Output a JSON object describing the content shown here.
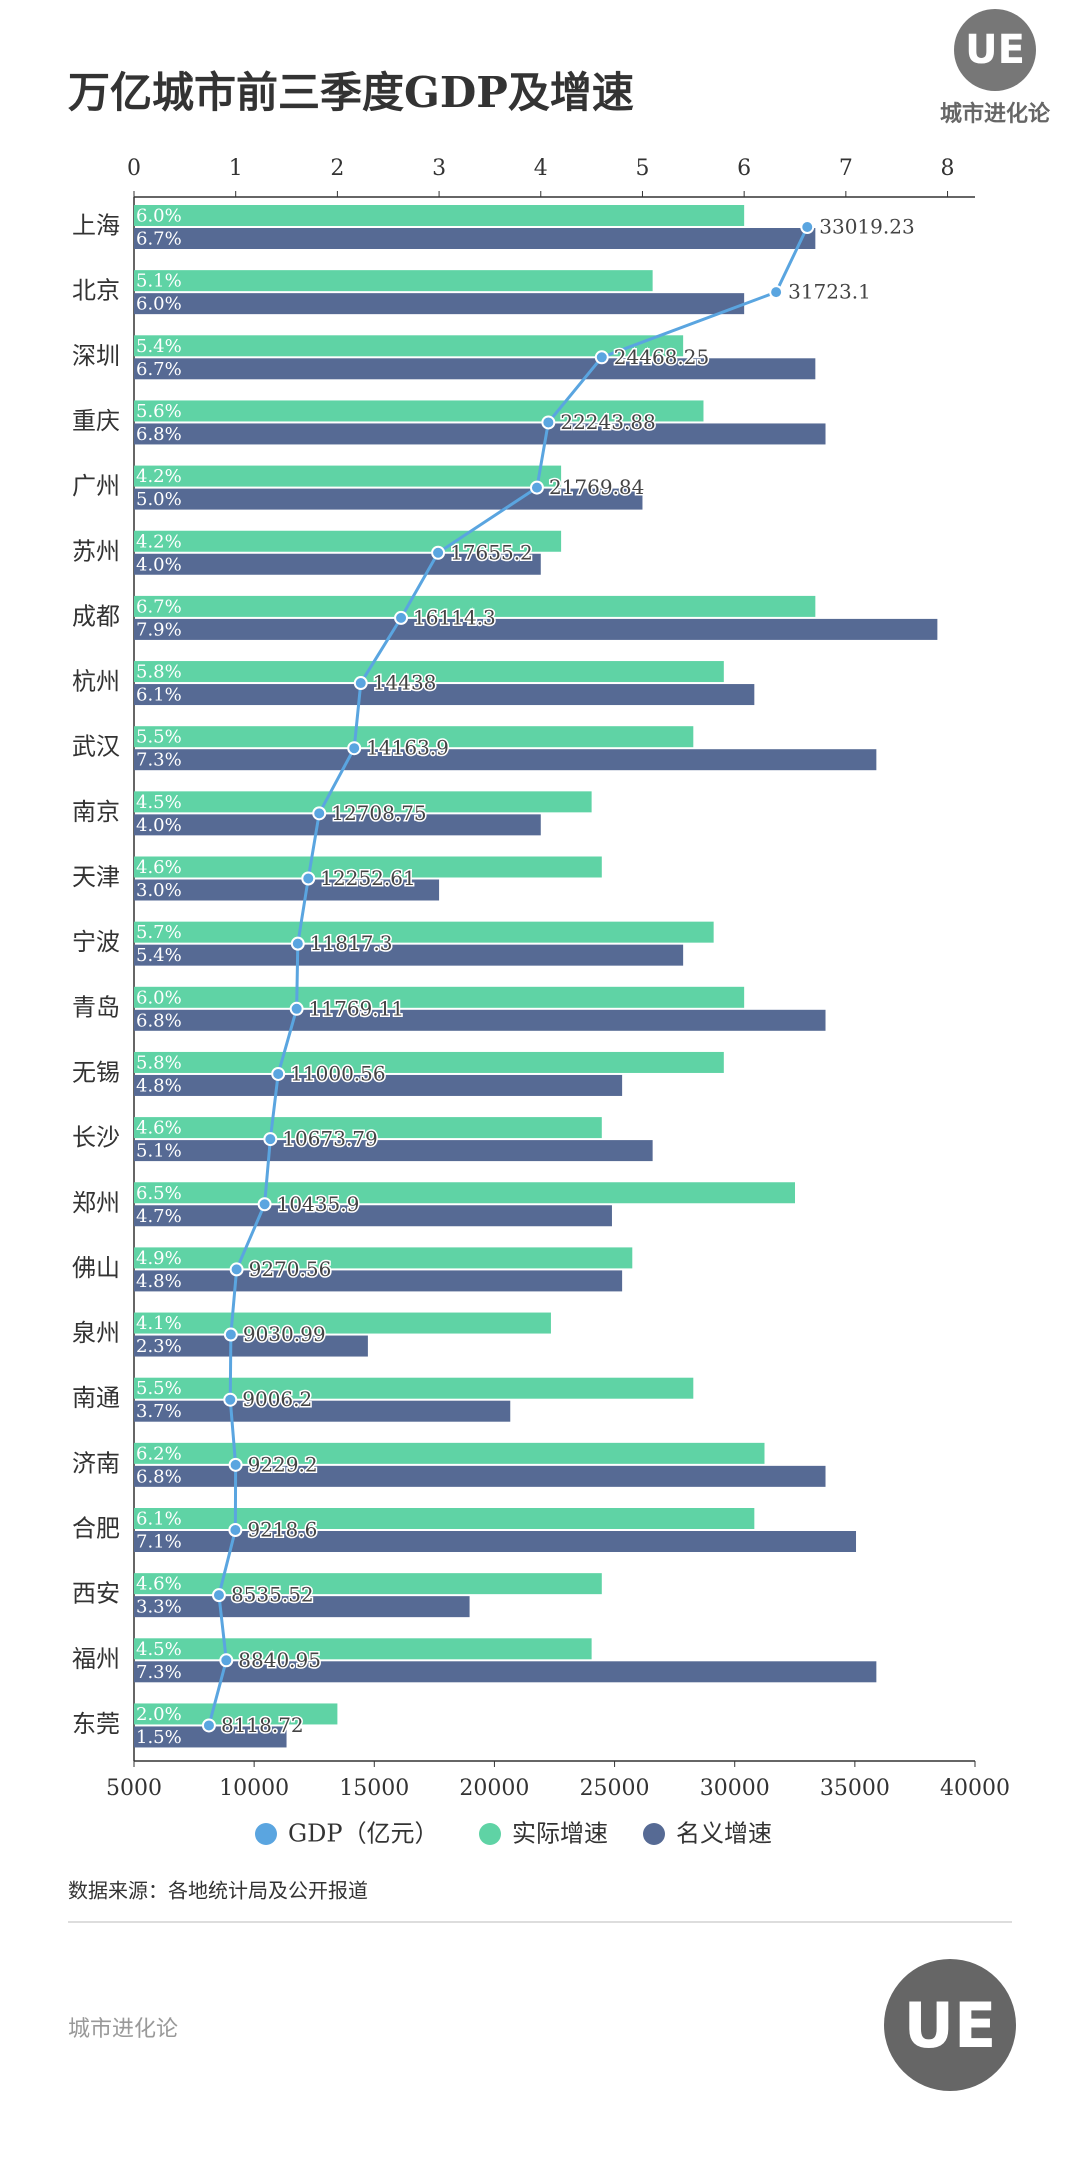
{
  "chart_data": {
    "type": "bar",
    "orientation": "horizontal",
    "title": "万亿城市前三季度GDP及增速",
    "brand": "城市进化论",
    "logo": "UE",
    "source": "数据来源：各地统计局及公开报道",
    "footer": "城市进化论",
    "categories": [
      "上海",
      "北京",
      "深圳",
      "重庆",
      "广州",
      "苏州",
      "成都",
      "杭州",
      "武汉",
      "南京",
      "天津",
      "宁波",
      "青岛",
      "无锡",
      "长沙",
      "郑州",
      "佛山",
      "泉州",
      "南通",
      "济南",
      "合肥",
      "西安",
      "福州",
      "东莞"
    ],
    "xlim": [
      5000,
      40000
    ],
    "xticks": [
      5000,
      10000,
      15000,
      20000,
      25000,
      30000,
      35000,
      40000
    ],
    "x2lim": [
      0,
      8.27
    ],
    "x2ticks": [
      0,
      1,
      2,
      3,
      4,
      5,
      6,
      7,
      8
    ],
    "series": [
      {
        "name": "GDP（亿元）",
        "type": "line",
        "axis": "x",
        "color": "#5aa5e0",
        "values": [
          33019.23,
          31723.1,
          24468.25,
          22243.88,
          21769.84,
          17655.2,
          16114.3,
          14438,
          14163.9,
          12708.75,
          12252.61,
          11817.3,
          11769.11,
          11000.56,
          10673.79,
          10435.9,
          9270.56,
          9030.99,
          9006.2,
          9229.2,
          9218.6,
          8535.52,
          8840.95,
          8118.72
        ]
      },
      {
        "name": "实际增速",
        "type": "bar",
        "axis": "x2",
        "color": "#5fd3a5",
        "values": [
          6.0,
          5.1,
          5.4,
          5.6,
          4.2,
          4.2,
          6.7,
          5.8,
          5.5,
          4.5,
          4.6,
          5.7,
          6.0,
          5.8,
          4.6,
          6.5,
          4.9,
          4.1,
          5.5,
          6.2,
          6.1,
          4.6,
          4.5,
          2.0
        ],
        "value_labels": [
          "6.0%",
          "5.1%",
          "5.4%",
          "5.6%",
          "4.2%",
          "4.2%",
          "6.7%",
          "5.8%",
          "5.5%",
          "4.5%",
          "4.6%",
          "5.7%",
          "6.0%",
          "5.8%",
          "4.6%",
          "6.5%",
          "4.9%",
          "4.1%",
          "5.5%",
          "6.2%",
          "6.1%",
          "4.6%",
          "4.5%",
          "2.0%"
        ]
      },
      {
        "name": "名义增速",
        "type": "bar",
        "axis": "x2",
        "color": "#566a94",
        "values": [
          6.7,
          6.0,
          6.7,
          6.8,
          5.0,
          4.0,
          7.9,
          6.1,
          7.3,
          4.0,
          3.0,
          5.4,
          6.8,
          4.8,
          5.1,
          4.7,
          4.8,
          2.3,
          3.7,
          6.8,
          7.1,
          3.3,
          7.3,
          1.5
        ],
        "value_labels": [
          "6.7%",
          "6.0%",
          "6.7%",
          "6.8%",
          "5.0%",
          "4.0%",
          "7.9%",
          "6.1%",
          "7.3%",
          "4.0%",
          "3.0%",
          "5.4%",
          "6.8%",
          "4.8%",
          "5.1%",
          "4.7%",
          "4.8%",
          "2.3%",
          "3.7%",
          "6.8%",
          "7.1%",
          "3.3%",
          "7.3%",
          "1.5%"
        ]
      }
    ]
  }
}
